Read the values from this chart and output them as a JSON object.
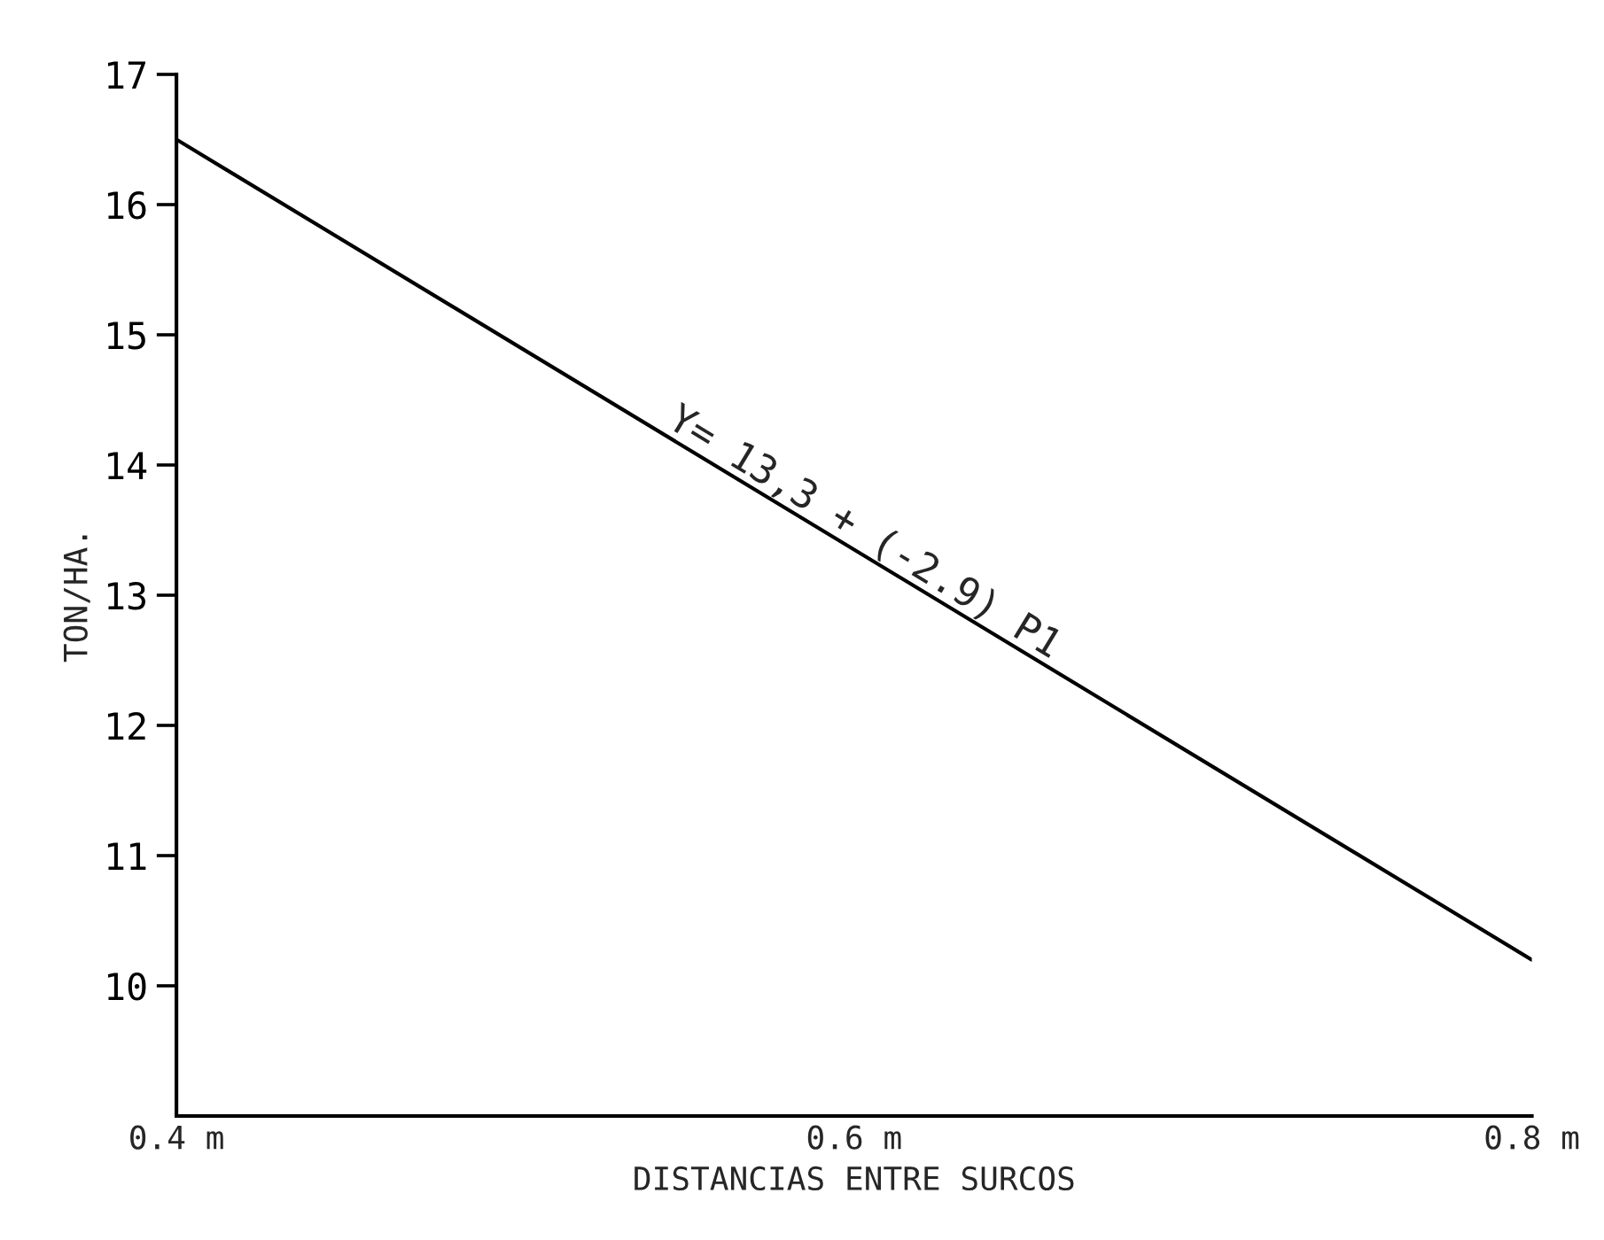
{
  "chart_data": {
    "type": "line",
    "xlabel": "DISTANCIAS ENTRE SURCOS",
    "ylabel": "TON/HA.",
    "x": [
      0.4,
      0.8
    ],
    "series": [
      {
        "color": "#000000",
        "values": [
          16.5,
          10.2
        ]
      }
    ],
    "xlim": [
      0.4,
      0.8
    ],
    "xticks": [
      {
        "value": 0.4,
        "label": "0.4 m"
      },
      {
        "value": 0.6,
        "label": "0.6 m"
      },
      {
        "value": 0.8,
        "label": "0.8 m"
      }
    ],
    "ylim": [
      9,
      17
    ],
    "yticks": [
      10,
      11,
      12,
      13,
      14,
      15,
      16,
      17
    ],
    "annotations": [
      {
        "text": "Y= 13,3 + (-2.9) P1",
        "x": 0.6,
        "y": 13.35
      }
    ],
    "grid": false,
    "legend": false
  }
}
